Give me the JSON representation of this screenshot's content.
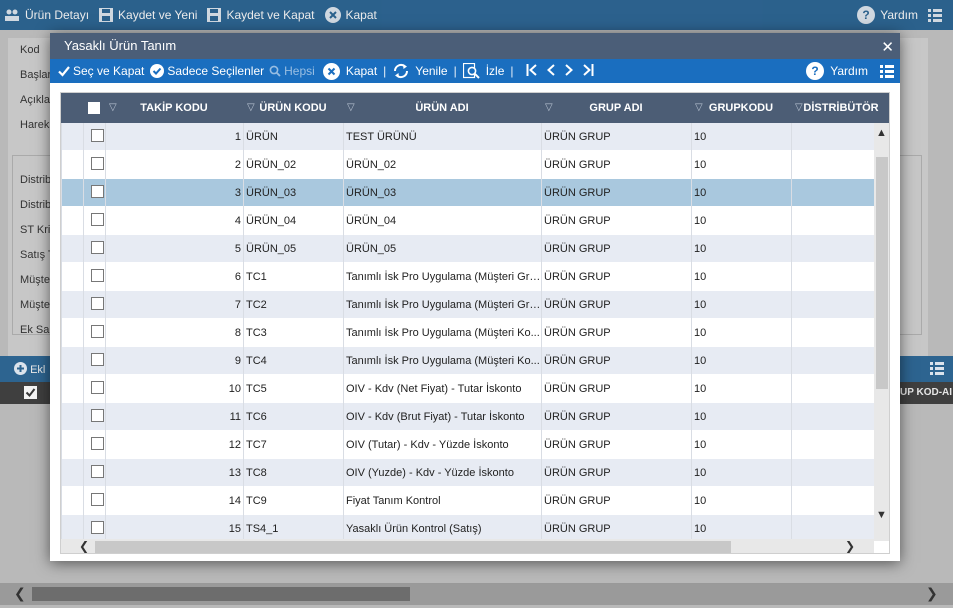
{
  "app_toolbar": {
    "product_detail": "Ürün Detayı",
    "save_new": "Kaydet ve Yeni",
    "save_close": "Kaydet ve Kapat",
    "close": "Kapat",
    "help": "Yardım"
  },
  "background_form": {
    "labels": [
      "Kod",
      "Başlar",
      "Açıkla",
      "Harek",
      "Distrib",
      "Distrib",
      "ST Krit",
      "Satış T",
      "Müşte",
      "Müşte",
      "Ek Sah"
    ],
    "add_label": "Ekl",
    "truncated_header": "UP KOD-AI"
  },
  "modal": {
    "title": "Yasaklı Ürün Tanım",
    "toolbar": {
      "select_close": "Seç ve Kapat",
      "only_selected": "Sadece Seçilenler",
      "all": "Hepsi",
      "close": "Kapat",
      "refresh": "Yenile",
      "watch": "İzle",
      "help": "Yardım",
      "separator": "|"
    },
    "columns": [
      "TAKİP KODU",
      "ÜRÜN KODU",
      "ÜRÜN ADI",
      "GRUP ADI",
      "GRUPKODU",
      "DİSTRİBÜTÖR"
    ],
    "rows": [
      {
        "takip": "1",
        "kod": "ÜRÜN",
        "ad": "TEST ÜRÜNÜ",
        "grup": "ÜRÜN GRUP",
        "grupkodu": "10"
      },
      {
        "takip": "2",
        "kod": "ÜRÜN_02",
        "ad": "ÜRÜN_02",
        "grup": "ÜRÜN GRUP",
        "grupkodu": "10"
      },
      {
        "takip": "3",
        "kod": "ÜRÜN_03",
        "ad": "ÜRÜN_03",
        "grup": "ÜRÜN GRUP",
        "grupkodu": "10"
      },
      {
        "takip": "4",
        "kod": "ÜRÜN_04",
        "ad": "ÜRÜN_04",
        "grup": "ÜRÜN GRUP",
        "grupkodu": "10"
      },
      {
        "takip": "5",
        "kod": "ÜRÜN_05",
        "ad": "ÜRÜN_05",
        "grup": "ÜRÜN GRUP",
        "grupkodu": "10"
      },
      {
        "takip": "6",
        "kod": "TC1",
        "ad": "Tanımlı İsk Pro Uygulama (Müşteri Gru...",
        "grup": "ÜRÜN GRUP",
        "grupkodu": "10"
      },
      {
        "takip": "7",
        "kod": "TC2",
        "ad": "Tanımlı İsk Pro Uygulama (Müşteri Gru...",
        "grup": "ÜRÜN GRUP",
        "grupkodu": "10"
      },
      {
        "takip": "8",
        "kod": "TC3",
        "ad": "Tanımlı İsk Pro Uygulama (Müşteri Ko...",
        "grup": "ÜRÜN GRUP",
        "grupkodu": "10"
      },
      {
        "takip": "9",
        "kod": "TC4",
        "ad": "Tanımlı İsk Pro Uygulama (Müşteri Ko...",
        "grup": "ÜRÜN GRUP",
        "grupkodu": "10"
      },
      {
        "takip": "10",
        "kod": "TC5",
        "ad": "OIV - Kdv (Net Fiyat) - Tutar İskonto",
        "grup": "ÜRÜN GRUP",
        "grupkodu": "10"
      },
      {
        "takip": "11",
        "kod": "TC6",
        "ad": "OIV - Kdv (Brut Fiyat) - Tutar İskonto",
        "grup": "ÜRÜN GRUP",
        "grupkodu": "10"
      },
      {
        "takip": "12",
        "kod": "TC7",
        "ad": "OIV (Tutar) - Kdv - Yüzde İskonto",
        "grup": "ÜRÜN GRUP",
        "grupkodu": "10"
      },
      {
        "takip": "13",
        "kod": "TC8",
        "ad": "OIV (Yuzde) - Kdv - Yüzde İskonto",
        "grup": "ÜRÜN GRUP",
        "grupkodu": "10"
      },
      {
        "takip": "14",
        "kod": "TC9",
        "ad": "Fiyat Tanım Kontrol",
        "grup": "ÜRÜN GRUP",
        "grupkodu": "10"
      },
      {
        "takip": "15",
        "kod": "TS4_1",
        "ad": "Yasaklı Ürün Kontrol (Satış)",
        "grup": "ÜRÜN GRUP",
        "grupkodu": "10"
      }
    ],
    "selected_row": 2
  }
}
